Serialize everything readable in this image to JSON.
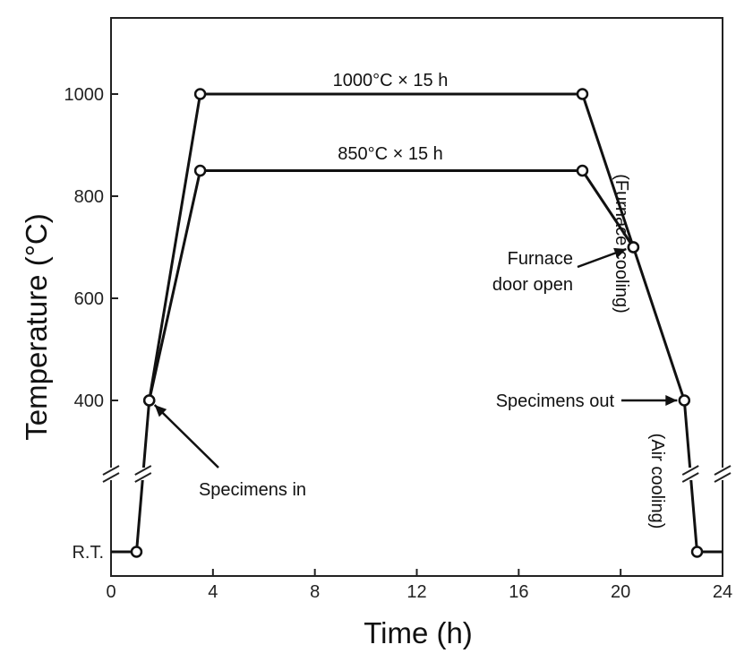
{
  "chart_data": {
    "type": "line",
    "xlabel": "Time (h)",
    "ylabel": "Temperature (°C)",
    "xlim": [
      0,
      24
    ],
    "ylim": [
      0,
      1150
    ],
    "xticks": [
      "0",
      "4",
      "8",
      "12",
      "16",
      "20",
      "24"
    ],
    "yticks": [
      "R.T.",
      "400",
      "600",
      "800",
      "1000"
    ],
    "grid": false,
    "axis_break": "y",
    "series": [
      {
        "x": [
          0,
          1,
          1.5,
          3.5,
          18.5,
          20.5,
          22.5,
          23,
          24
        ],
        "y": [
          0,
          0,
          400,
          1000,
          1000,
          700,
          400,
          0,
          0
        ],
        "markers": [
          false,
          true,
          true,
          true,
          true,
          true,
          true,
          true,
          false
        ]
      },
      {
        "x": [
          1.5,
          3.5,
          18.5,
          20.5
        ],
        "y": [
          400,
          850,
          850,
          700
        ],
        "markers": [
          true,
          true,
          true,
          true
        ]
      }
    ],
    "annotations": {
      "top_label": "1000°C × 15 h",
      "mid_label": "850°C × 15 h",
      "furnace_cooling": "(Furnace cooling)",
      "door_open_line1": "Furnace",
      "door_open_line2": "door open",
      "specimens_out": "Specimens out",
      "specimens_in": "Specimens in",
      "air_cooling": "(Air cooling)"
    }
  }
}
